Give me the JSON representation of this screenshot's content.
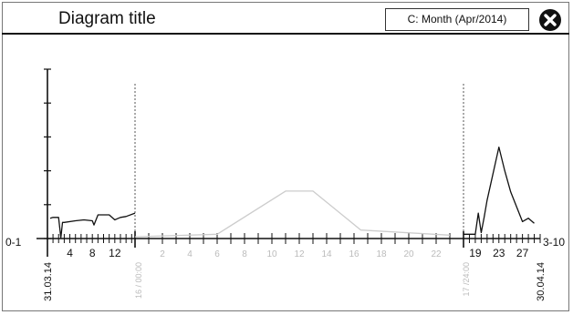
{
  "header": {
    "title": "Diagram title",
    "dropdown_value": "C: Month (Apr/2014)",
    "close_icon": "close-circle-icon"
  },
  "colors": {
    "active_line": "#111111",
    "inactive_line": "#cccccc",
    "inactive_label": "#bbbbbb"
  },
  "chart_data": {
    "type": "line",
    "x_range_labels": {
      "left": "0-1",
      "right": "3-10"
    },
    "segments": [
      {
        "name": "",
        "active": true,
        "x": [
          0.5,
          1,
          2,
          2.4,
          2.7,
          3,
          5,
          6.5,
          8,
          8.3,
          9,
          10,
          11,
          12,
          13,
          14,
          15.6
        ],
        "y": [
          24,
          25,
          25,
          1,
          19,
          19,
          21,
          22,
          21,
          16,
          28,
          28,
          28,
          22,
          25,
          26,
          30
        ]
      },
      {
        "name": "",
        "active": false,
        "x": [
          0,
          6,
          11,
          13,
          16.5,
          23
        ],
        "y": [
          2,
          5,
          56,
          56,
          10,
          4
        ]
      },
      {
        "name": "",
        "active": true,
        "x": [
          17,
          18,
          19,
          19.5,
          20,
          20.5,
          21,
          23,
          24,
          25,
          27,
          28,
          29
        ],
        "y": [
          5,
          5,
          5,
          30,
          7,
          25,
          45,
          108,
          80,
          55,
          20,
          24,
          18
        ]
      }
    ],
    "ylim": [
      0,
      200
    ],
    "left_ticks": {
      "labels": [
        "4",
        "8",
        "12"
      ],
      "values": [
        4,
        8,
        12
      ],
      "range": [
        0.5,
        15.6
      ]
    },
    "middle_ticks": {
      "labels": [
        "2",
        "4",
        "6",
        "8",
        "10",
        "12",
        "14",
        "16",
        "18",
        "20",
        "22"
      ],
      "values": [
        2,
        4,
        6,
        8,
        10,
        12,
        14,
        16,
        18,
        20,
        22
      ],
      "range": [
        0,
        24
      ]
    },
    "right_ticks": {
      "labels": [
        "19",
        "23",
        "27"
      ],
      "values": [
        19,
        23,
        27
      ],
      "range": [
        17,
        30
      ]
    },
    "date_labels": {
      "start": "31.03.14",
      "split_left": "16 / 00:00",
      "split_right": "17 /24:00",
      "end": "30.04.14"
    }
  }
}
